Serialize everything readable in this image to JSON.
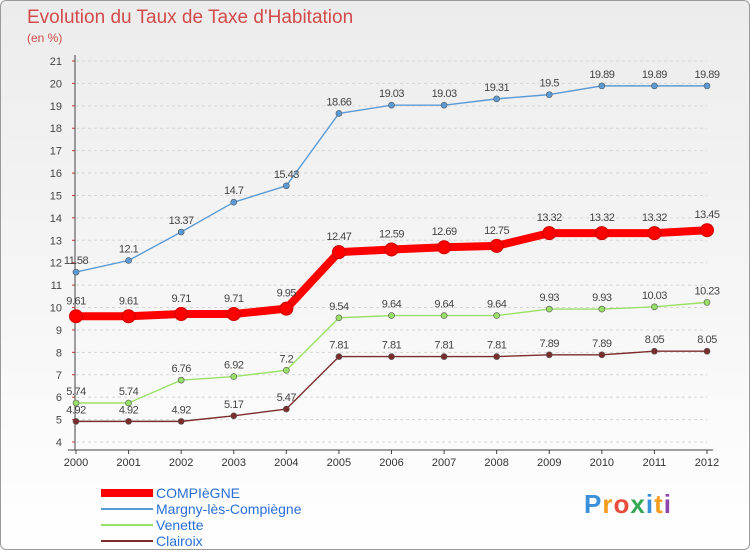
{
  "header": {
    "title": "Evolution du Taux de Taxe d'Habitation",
    "subtitle": "(en %)"
  },
  "logo": {
    "text": "Proxiti",
    "letters": [
      "P",
      "r",
      "o",
      "x",
      "i",
      "t",
      "i"
    ],
    "colors": [
      "#3a8fd9",
      "#f39c1f",
      "#e74c3c",
      "#34a853",
      "#3a8fd9",
      "#f39c1f",
      "#8e44ad"
    ]
  },
  "chart_data": {
    "type": "line",
    "title": "Evolution du Taux de Taxe d'Habitation",
    "subtitle": "(en %)",
    "xlabel": "",
    "ylabel": "",
    "x": [
      "2000",
      "2001",
      "2002",
      "2003",
      "2004",
      "2005",
      "2006",
      "2007",
      "2008",
      "2009",
      "2010",
      "2011",
      "2012"
    ],
    "ylim": [
      4,
      21
    ],
    "yticks": [
      "4",
      "5",
      "6",
      "7",
      "8",
      "9",
      "10",
      "11",
      "12",
      "13",
      "14",
      "15",
      "16",
      "17",
      "18",
      "19",
      "20",
      "21"
    ],
    "grid": "horizontal",
    "legend_position": "bottom-left",
    "series": [
      {
        "name": "COMPIèGNE",
        "color": "#ff0000",
        "emphasis": true,
        "values": [
          9.61,
          9.61,
          9.71,
          9.71,
          9.95,
          12.47,
          12.59,
          12.69,
          12.75,
          13.32,
          13.32,
          13.32,
          13.45
        ],
        "labels": [
          "9.61",
          "9.61",
          "9.71",
          "9.71",
          "9.95",
          "12.47",
          "12.59",
          "12.69",
          "12.75",
          "13.32",
          "13.32",
          "13.32",
          "13.45"
        ]
      },
      {
        "name": "Margny-lès-Compiègne",
        "color": "#5b9bd5",
        "emphasis": false,
        "values": [
          11.58,
          12.1,
          13.37,
          14.7,
          15.43,
          18.66,
          19.03,
          19.03,
          19.31,
          19.5,
          19.89,
          19.89,
          19.89
        ],
        "labels": [
          "11.58",
          "12.1",
          "13.37",
          "14.7",
          "15.43",
          "18.66",
          "19.03",
          "19.03",
          "19.31",
          "19.5",
          "19.89",
          "19.89",
          "19.89"
        ]
      },
      {
        "name": "Venette",
        "color": "#99e066",
        "emphasis": false,
        "values": [
          5.74,
          5.74,
          6.76,
          6.92,
          7.2,
          9.54,
          9.64,
          9.64,
          9.64,
          9.93,
          9.93,
          10.03,
          10.23
        ],
        "labels": [
          "5.74",
          "5.74",
          "6.76",
          "6.92",
          "7.2",
          "9.54",
          "9.64",
          "9.64",
          "9.64",
          "9.93",
          "9.93",
          "10.03",
          "10.23"
        ]
      },
      {
        "name": "Clairoix",
        "color": "#7b2c2c",
        "emphasis": false,
        "values": [
          4.92,
          4.92,
          4.92,
          5.17,
          5.47,
          7.81,
          7.81,
          7.81,
          7.81,
          7.89,
          7.89,
          8.05,
          8.05
        ],
        "labels": [
          "4.92",
          "4.92",
          "4.92",
          "5.17",
          "5.47",
          "7.81",
          "7.81",
          "7.81",
          "7.81",
          "7.89",
          "7.89",
          "8.05",
          "8.05"
        ]
      }
    ]
  }
}
